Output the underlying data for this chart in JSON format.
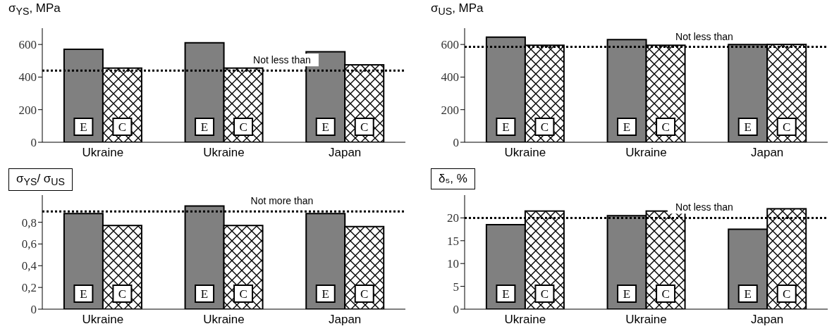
{
  "chart_data": [
    {
      "type": "bar",
      "ylabel": "σ$_{YS}$, MPa",
      "categories": [
        "Ukraine",
        "Ukraine",
        "Japan"
      ],
      "series": [
        {
          "name": "E",
          "color": "#808080",
          "values": [
            570,
            610,
            555
          ]
        },
        {
          "name": "C",
          "color": "#ffffff",
          "values": [
            455,
            455,
            475
          ]
        }
      ],
      "ylim": [
        0,
        700
      ],
      "yticks": [
        0,
        200,
        400,
        600
      ],
      "ref_lines": [
        {
          "axis": "y",
          "value": 440,
          "label": "Not less than",
          "line_style": "dotted"
        }
      ]
    },
    {
      "type": "bar",
      "ylabel": "σ$_{US}$, MPa",
      "categories": [
        "Ukraine",
        "Ukraine",
        "Japan"
      ],
      "series": [
        {
          "name": "E",
          "color": "#808080",
          "values": [
            645,
            630,
            600
          ]
        },
        {
          "name": "C",
          "color": "#ffffff",
          "values": [
            595,
            595,
            600
          ]
        }
      ],
      "ylim": [
        0,
        700
      ],
      "yticks": [
        0,
        200,
        400,
        600
      ],
      "ref_lines": [
        {
          "axis": "y",
          "value": 585,
          "label": "Not less than",
          "line_style": "dotted"
        }
      ]
    },
    {
      "type": "bar",
      "ylabel": "σ$_{YS}$/ σ$_{US}$",
      "categories": [
        "Ukraine",
        "Ukraine",
        "Japan"
      ],
      "series": [
        {
          "name": "E",
          "color": "#808080",
          "values": [
            0.88,
            0.95,
            0.88
          ]
        },
        {
          "name": "C",
          "color": "#ffffff",
          "values": [
            0.77,
            0.77,
            0.76
          ]
        }
      ],
      "ylim": [
        0,
        1.05
      ],
      "yticks": [
        0,
        {
          "value": 0.2,
          "label": "0,2"
        },
        {
          "value": 0.4,
          "label": "0,4"
        },
        {
          "value": 0.6,
          "label": "0,6"
        },
        {
          "value": 0.8,
          "label": "0,8"
        }
      ],
      "ref_lines": [
        {
          "axis": "y",
          "value": 0.9,
          "label": "Not more than",
          "line_style": "dotted"
        }
      ]
    },
    {
      "type": "bar",
      "ylabel": "δ₅, %",
      "categories": [
        "Ukraine",
        "Ukraine",
        "Japan"
      ],
      "series": [
        {
          "name": "E",
          "color": "#808080",
          "values": [
            18.5,
            20.5,
            17.5
          ]
        },
        {
          "name": "C",
          "color": "#ffffff",
          "values": [
            21.5,
            21.5,
            22
          ]
        }
      ],
      "ylim": [
        0,
        25
      ],
      "yticks": [
        0,
        5,
        10,
        15,
        20
      ],
      "ref_lines": [
        {
          "axis": "y",
          "value": 20,
          "label": "Not less than",
          "line_style": "dotted"
        }
      ]
    }
  ]
}
